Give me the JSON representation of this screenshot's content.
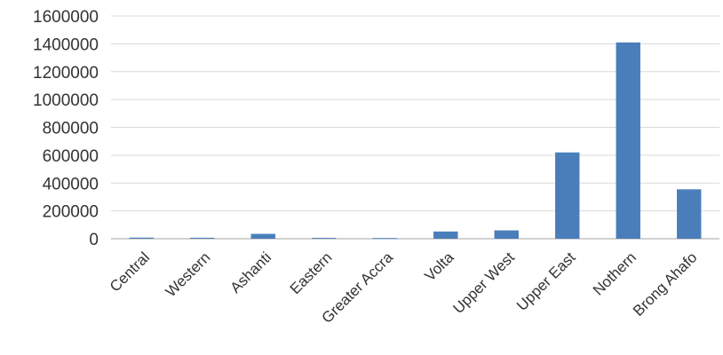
{
  "chart_data": {
    "type": "bar",
    "title": "",
    "xlabel": "",
    "ylabel": "",
    "categories": [
      "Central",
      "Western",
      "Ashanti",
      "Eastern",
      "Greater Accra",
      "Volta",
      "Upper West",
      "Upper East",
      "Nothern",
      "Brong Ahafo"
    ],
    "values": [
      8000,
      7000,
      35000,
      6000,
      5000,
      52000,
      60000,
      620000,
      1410000,
      355000
    ],
    "ylim": [
      0,
      1600000
    ],
    "yticks": [
      0,
      200000,
      400000,
      600000,
      800000,
      1000000,
      1200000,
      1400000,
      1600000
    ],
    "ytick_labels": [
      "0",
      "200000",
      "400000",
      "600000",
      "800000",
      "1000000",
      "1200000",
      "1400000",
      "1600000"
    ],
    "grid": true,
    "legend": "none",
    "bar_color": "#4a7ebb"
  }
}
